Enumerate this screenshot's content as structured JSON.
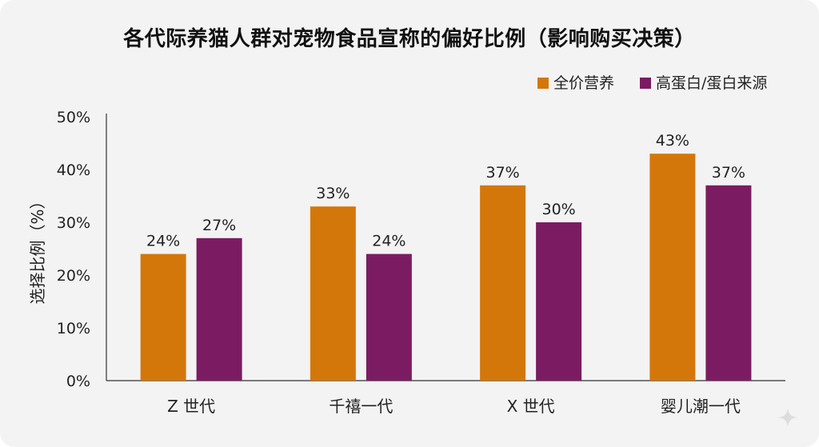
{
  "chart_data": {
    "type": "bar",
    "title": "各代际养猫人群对宠物食品宣称的偏好比例（影响购买决策）",
    "xlabel": "",
    "ylabel": "选择比例（%）",
    "ylim": [
      0,
      50
    ],
    "yticks": [
      "0%",
      "10%",
      "20%",
      "30%",
      "40%",
      "50%"
    ],
    "categories": [
      "Z 世代",
      "千禧一代",
      "X 世代",
      "婴儿潮一代"
    ],
    "series": [
      {
        "name": "全价营养",
        "color": "#d4770b",
        "values": [
          24,
          33,
          37,
          43
        ],
        "labels": [
          "24%",
          "33%",
          "37%",
          "43%"
        ]
      },
      {
        "name": "高蛋白/蛋白来源",
        "color": "#7b1c62",
        "values": [
          27,
          24,
          30,
          37
        ],
        "labels": [
          "27%",
          "24%",
          "30%",
          "37%"
        ]
      }
    ],
    "legend_position": "top-right",
    "grid": false
  }
}
